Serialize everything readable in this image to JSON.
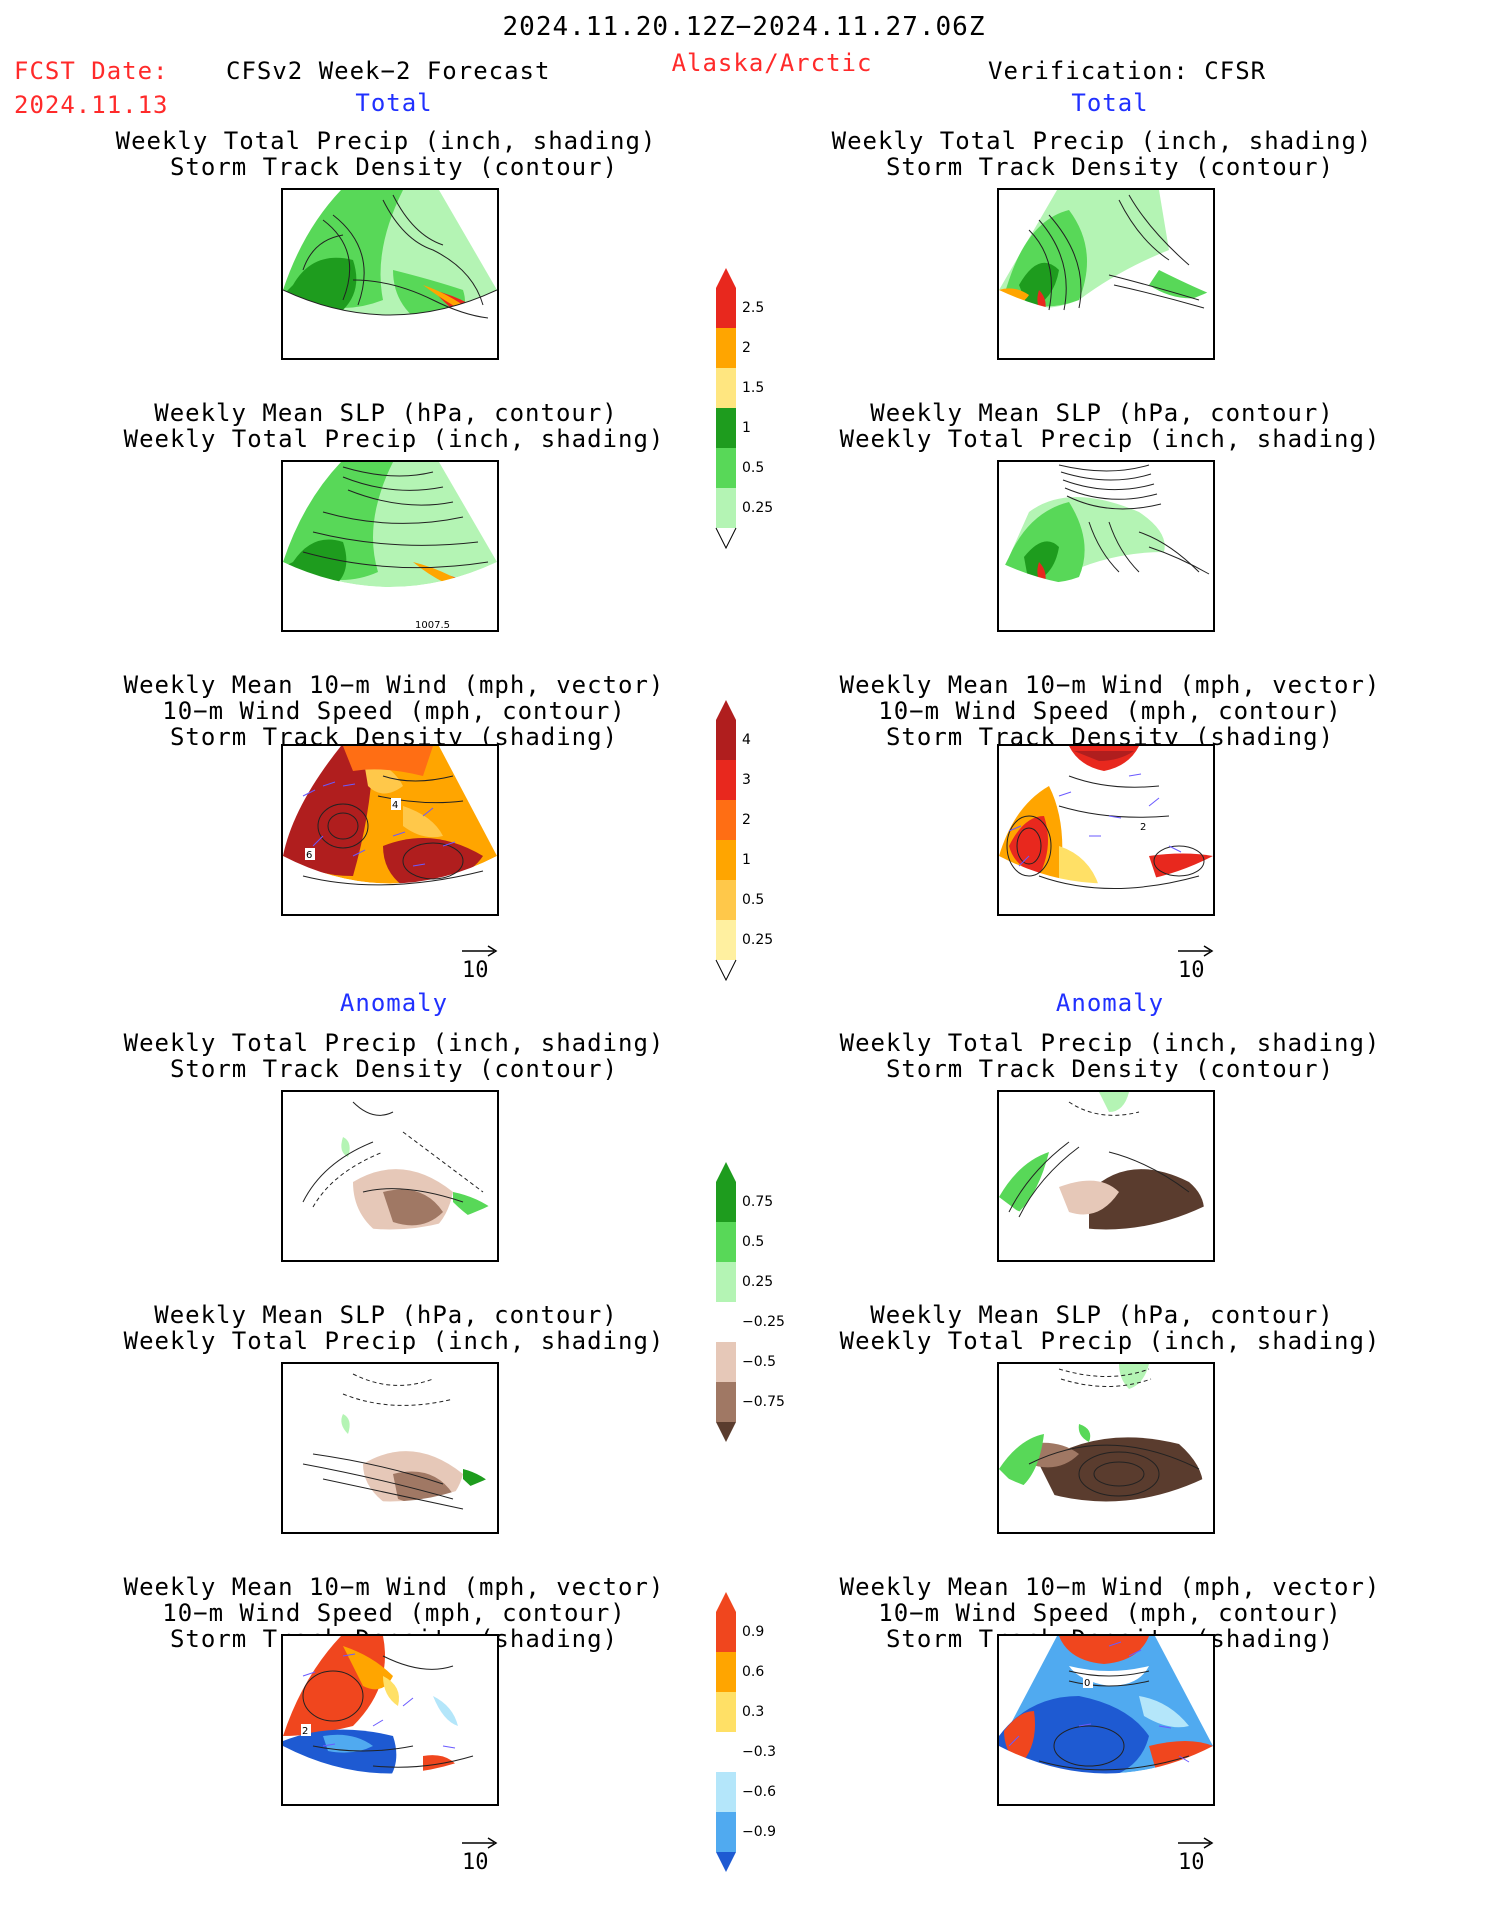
{
  "header": {
    "period": "2024.11.20.12Z−2024.11.27.06Z",
    "fcst_label": "FCST Date:",
    "fcst_date": "2024.11.13",
    "model": "CFSv2 Week−2 Forecast",
    "region": "Alaska/Arctic",
    "verification": "Verification: CFSR"
  },
  "sections": {
    "total": "Total",
    "anomaly": "Anomaly"
  },
  "titles": {
    "precip_track": [
      "Weekly Total Precip (inch, shading)",
      "Storm Track Density (contour)"
    ],
    "slp_precip": [
      "Weekly Mean SLP (hPa, contour)",
      "Weekly Total Precip (inch, shading)"
    ],
    "wind_track": [
      "Weekly Mean 10−m Wind (mph, vector)",
      "10−m Wind Speed (mph, contour)",
      "Storm Track Density (shading)"
    ]
  },
  "panel_labels": {
    "slp_contour_label": "1007.5",
    "wind_fcst_labels": [
      "4",
      "6"
    ],
    "wind_cfsr_labels": [
      "2"
    ],
    "wind_anom_fcst_label": "2",
    "wind_anom_cfsr_label": "0"
  },
  "vector_reference": "10",
  "colorbars": [
    {
      "name": "total-precip",
      "labels": [
        "2.5",
        "2",
        "1.5",
        "1",
        "0.5",
        "0.25"
      ],
      "colors": [
        "#e8281e",
        "#ffa500",
        "#ffe680",
        "#1e9c1e",
        "#58d858",
        "#b4f4b4"
      ]
    },
    {
      "name": "storm-track-total",
      "labels": [
        "4",
        "3",
        "2",
        "1",
        "0.5",
        "0.25"
      ],
      "colors": [
        "#b01e1e",
        "#e8281e",
        "#ff6e14",
        "#ffa500",
        "#ffc84a",
        "#fff0a0"
      ]
    },
    {
      "name": "precip-anomaly",
      "labels": [
        "0.75",
        "0.5",
        "0.25",
        "−0.25",
        "−0.5",
        "−0.75"
      ],
      "colors": [
        "#1e9c1e",
        "#58d858",
        "#b4f4b4",
        "#ffffff",
        "#e6c8b8",
        "#a07864",
        "#5a3c2e"
      ]
    },
    {
      "name": "storm-track-anomaly",
      "labels": [
        "0.9",
        "0.6",
        "0.3",
        "−0.3",
        "−0.6",
        "−0.9"
      ],
      "colors": [
        "#f0461e",
        "#ffa500",
        "#ffe066",
        "#ffffff",
        "#b4e6fa",
        "#50aaf0",
        "#1e5ad2"
      ]
    }
  ],
  "colors": {
    "header_red": "#ff2a2a",
    "section_blue": "#2030ff",
    "vector_purple": "#6a5aff"
  }
}
